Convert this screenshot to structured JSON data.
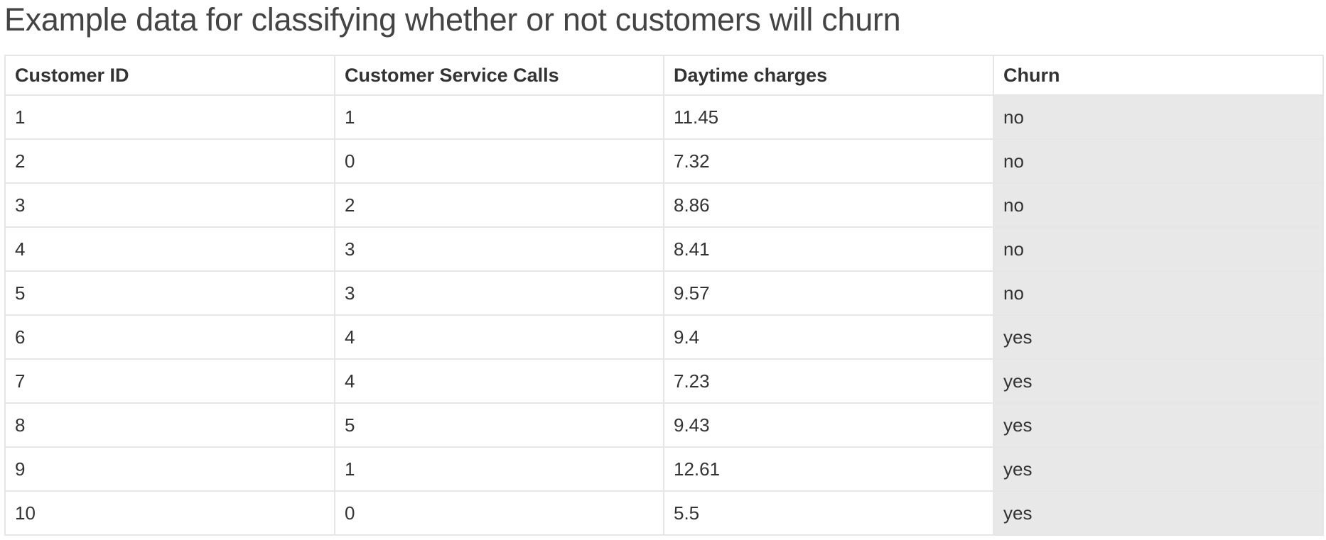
{
  "title": "Example data for classifying whether or not customers will churn",
  "table": {
    "headers": [
      "Customer ID",
      "Customer Service Calls",
      "Daytime charges",
      "Churn"
    ],
    "rows": [
      [
        "1",
        "1",
        "11.45",
        "no"
      ],
      [
        "2",
        "0",
        "7.32",
        "no"
      ],
      [
        "3",
        "2",
        "8.86",
        "no"
      ],
      [
        "4",
        "3",
        "8.41",
        "no"
      ],
      [
        "5",
        "3",
        "9.57",
        "no"
      ],
      [
        "6",
        "4",
        "9.4",
        "yes"
      ],
      [
        "7",
        "4",
        "7.23",
        "yes"
      ],
      [
        "8",
        "5",
        "9.43",
        "yes"
      ],
      [
        "9",
        "1",
        "12.61",
        "yes"
      ],
      [
        "10",
        "0",
        "5.5",
        "yes"
      ]
    ]
  },
  "colors": {
    "text": "#333333",
    "border": "#e6e6e6",
    "highlight_column": "#e8e8e8"
  }
}
